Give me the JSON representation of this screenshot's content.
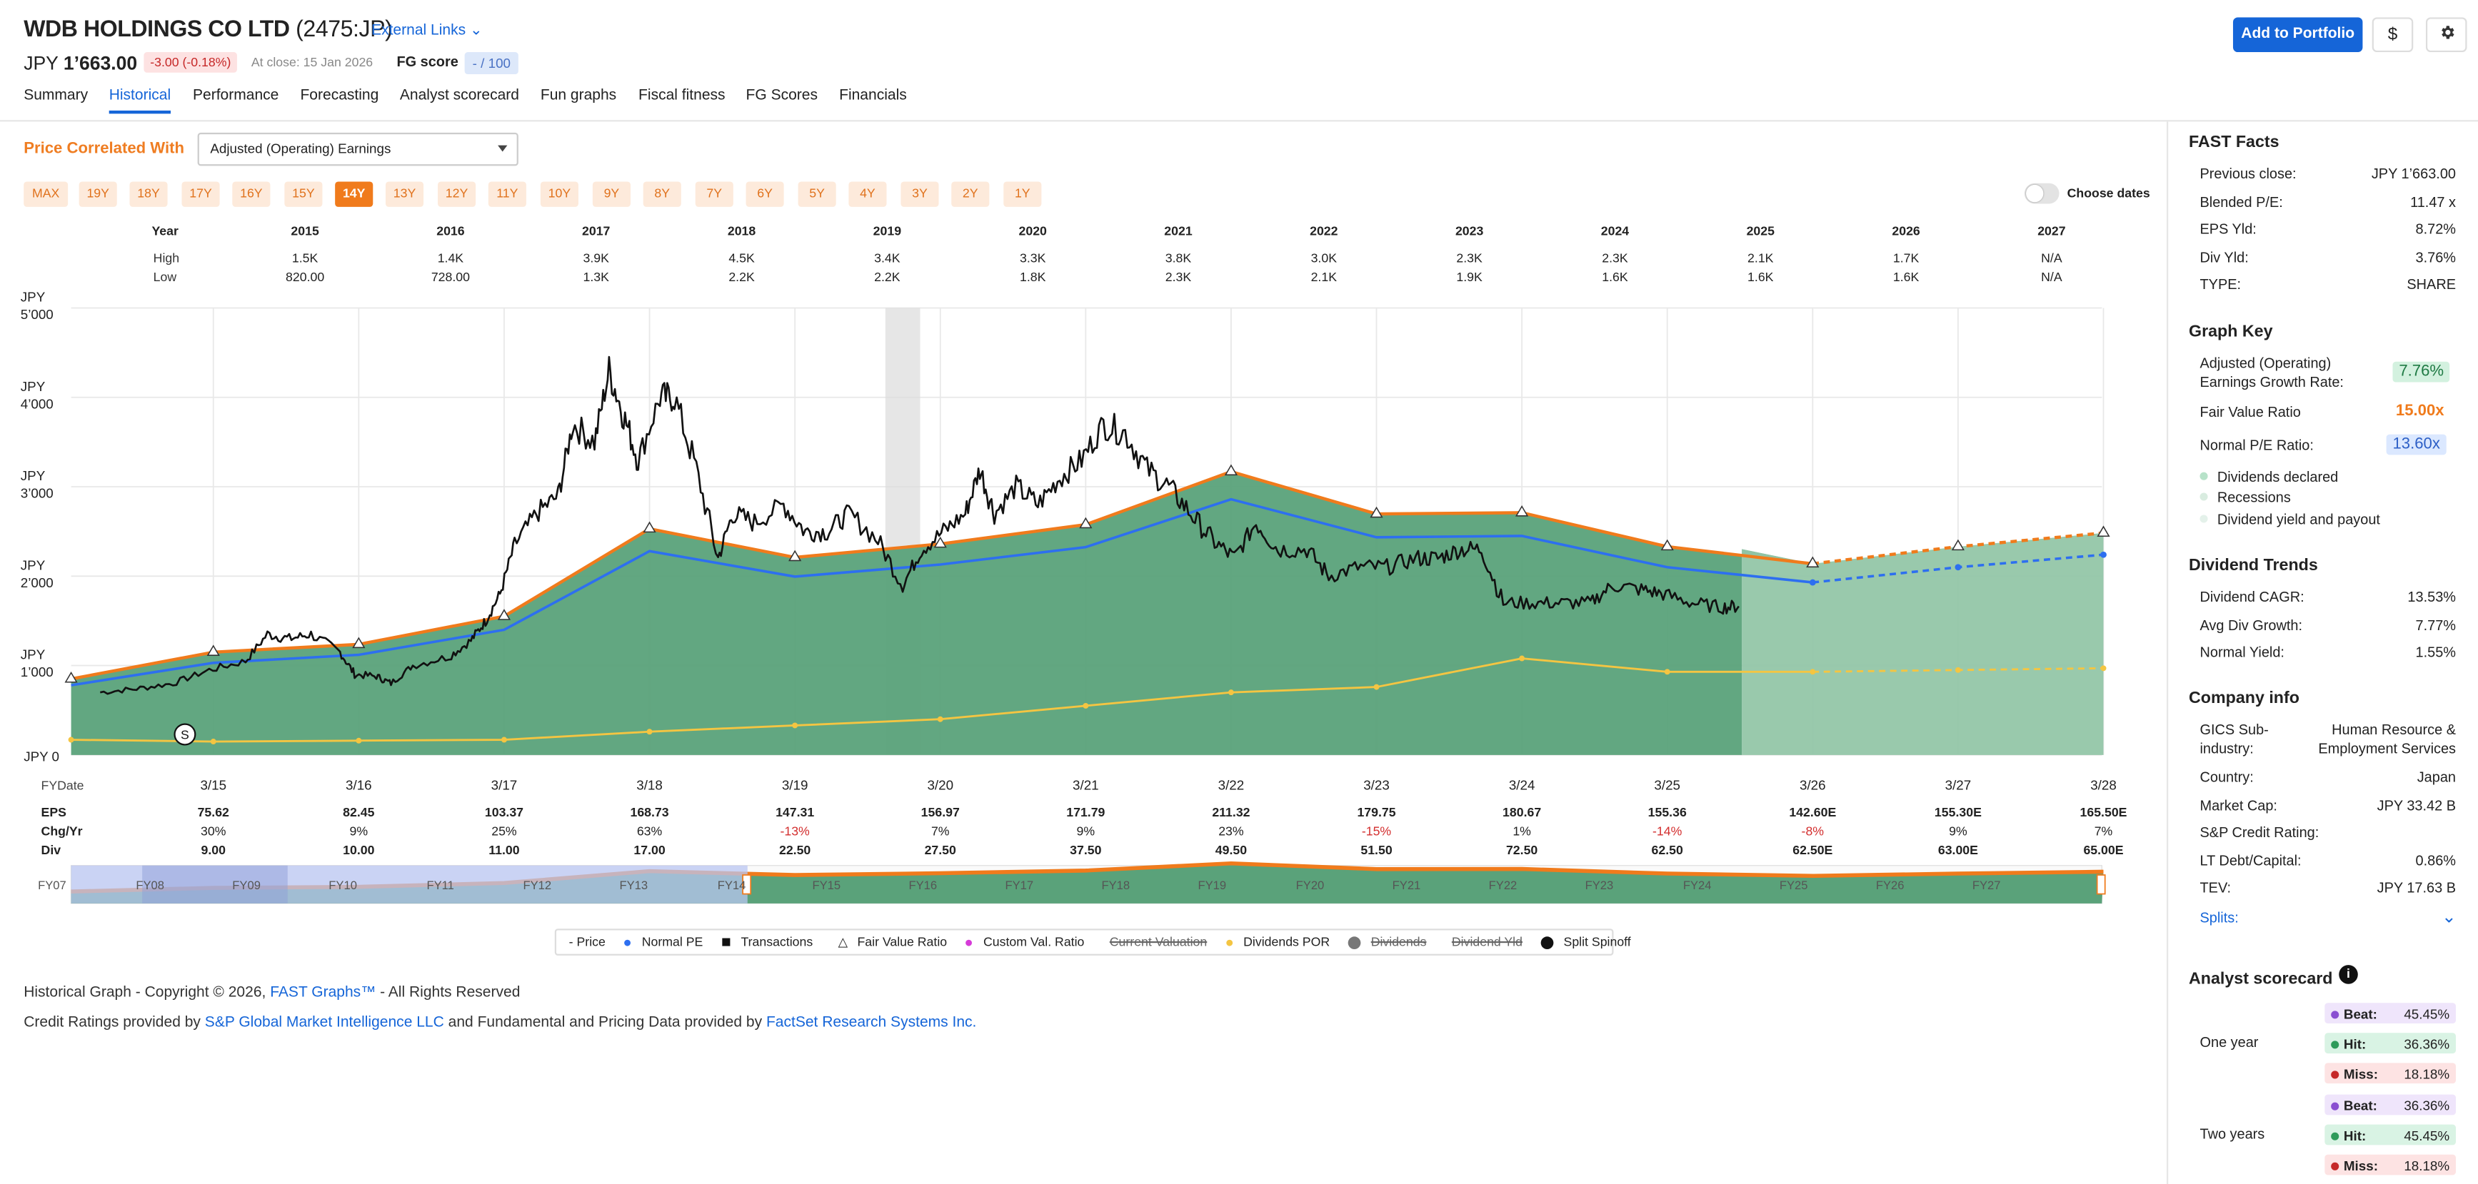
{
  "header": {
    "company": "WDB HOLDINGS CO LTD",
    "ticker": "(2475:JP)",
    "external_links": "External Links",
    "price_label": "JPY",
    "price_value": "1’663.00",
    "change": "-3.00 (-0.18%)",
    "at_close": "At close: 15 Jan 2026",
    "fg_score_label": "FG score",
    "fg_score_value": "- / 100",
    "add_portfolio": "Add to Portfolio",
    "currency_button": "$"
  },
  "tabs": [
    "Summary",
    "Historical",
    "Performance",
    "Forecasting",
    "Analyst scorecard",
    "Fun graphs",
    "Fiscal fitness",
    "FG Scores",
    "Financials"
  ],
  "controls": {
    "price_correlated_label": "Price Correlated With",
    "correlated_value": "Adjusted (Operating) Earnings",
    "year_buttons": [
      "MAX",
      "19Y",
      "18Y",
      "17Y",
      "16Y",
      "15Y",
      "14Y",
      "13Y",
      "12Y",
      "11Y",
      "10Y",
      "9Y",
      "8Y",
      "7Y",
      "6Y",
      "5Y",
      "4Y",
      "3Y",
      "2Y",
      "1Y"
    ],
    "year_selected": "14Y",
    "choose_dates": "Choose dates"
  },
  "range_table": {
    "year_label": "Year",
    "high_label": "High",
    "low_label": "Low",
    "years": [
      "2015",
      "2016",
      "2017",
      "2018",
      "2019",
      "2020",
      "2021",
      "2022",
      "2023",
      "2024",
      "2025",
      "2026",
      "2027"
    ],
    "high": [
      "1.5K",
      "1.4K",
      "3.9K",
      "4.5K",
      "3.4K",
      "3.3K",
      "3.8K",
      "3.0K",
      "2.3K",
      "2.3K",
      "2.1K",
      "1.7K",
      "N/A"
    ],
    "low": [
      "820.00",
      "728.00",
      "1.3K",
      "2.2K",
      "2.2K",
      "1.8K",
      "2.3K",
      "2.1K",
      "1.9K",
      "1.6K",
      "1.6K",
      "1.6K",
      "N/A"
    ]
  },
  "chart_data": {
    "type": "area",
    "currency": "JPY",
    "y_ticks": [
      "JPY 5’000",
      "JPY 4’000",
      "JPY 3’000",
      "JPY 2’000",
      "JPY 1’000",
      "JPY 0"
    ],
    "ylim": [
      0,
      5000
    ],
    "x_label": "FYDate",
    "x_dates": [
      "3/15",
      "3/16",
      "3/17",
      "3/18",
      "3/19",
      "3/20",
      "3/21",
      "3/22",
      "3/23",
      "3/24",
      "3/25",
      "3/26",
      "3/27",
      "3/28"
    ],
    "fair_value": [
      850,
      1150,
      1237,
      1551,
      2530,
      2210,
      2360,
      2577,
      3169,
      2696,
      2710,
      2330,
      2139,
      2330,
      2483
    ],
    "normal_pe": [
      780,
      1030,
      1120,
      1400,
      2280,
      1995,
      2130,
      2325,
      2860,
      2435,
      2450,
      2100,
      1930,
      2100,
      2240
    ],
    "dividends_por": [
      170,
      150,
      160,
      170,
      260,
      330,
      400,
      550,
      700,
      760,
      1080,
      930,
      930,
      950,
      970
    ],
    "price_points": [
      [
        2014.45,
        700
      ],
      [
        2014.7,
        740
      ],
      [
        2014.95,
        800
      ],
      [
        2015.2,
        950
      ],
      [
        2015.45,
        1050
      ],
      [
        2015.6,
        1350
      ],
      [
        2015.75,
        1300
      ],
      [
        2015.9,
        1350
      ],
      [
        2016.1,
        1150
      ],
      [
        2016.2,
        900
      ],
      [
        2016.35,
        880
      ],
      [
        2016.45,
        800
      ],
      [
        2016.6,
        1000
      ],
      [
        2016.85,
        1100
      ],
      [
        2017.0,
        1280
      ],
      [
        2017.1,
        1500
      ],
      [
        2017.2,
        1800
      ],
      [
        2017.3,
        2350
      ],
      [
        2017.45,
        2700
      ],
      [
        2017.6,
        2900
      ],
      [
        2017.7,
        3700
      ],
      [
        2017.85,
        3500
      ],
      [
        2017.95,
        4300
      ],
      [
        2018.05,
        3800
      ],
      [
        2018.15,
        3300
      ],
      [
        2018.3,
        4000
      ],
      [
        2018.4,
        4000
      ],
      [
        2018.55,
        3200
      ],
      [
        2018.7,
        2200
      ],
      [
        2018.8,
        2700
      ],
      [
        2018.95,
        2600
      ],
      [
        2019.15,
        2800
      ],
      [
        2019.3,
        2500
      ],
      [
        2019.45,
        2500
      ],
      [
        2019.6,
        2700
      ],
      [
        2019.8,
        2400
      ],
      [
        2019.97,
        1900
      ],
      [
        2020.1,
        2300
      ],
      [
        2020.25,
        2500
      ],
      [
        2020.4,
        2700
      ],
      [
        2020.5,
        3200
      ],
      [
        2020.6,
        2700
      ],
      [
        2020.75,
        3000
      ],
      [
        2020.9,
        2800
      ],
      [
        2021.05,
        3100
      ],
      [
        2021.2,
        3300
      ],
      [
        2021.35,
        3700
      ],
      [
        2021.5,
        3600
      ],
      [
        2021.65,
        3200
      ],
      [
        2021.8,
        3000
      ],
      [
        2021.95,
        2700
      ],
      [
        2022.1,
        2400
      ],
      [
        2022.25,
        2200
      ],
      [
        2022.4,
        2600
      ],
      [
        2022.55,
        2300
      ],
      [
        2022.75,
        2300
      ],
      [
        2022.9,
        2000
      ],
      [
        2023.1,
        2100
      ],
      [
        2023.3,
        2100
      ],
      [
        2023.5,
        2200
      ],
      [
        2023.65,
        2200
      ],
      [
        2023.8,
        2300
      ],
      [
        2023.95,
        2300
      ],
      [
        2024.1,
        1700
      ],
      [
        2024.3,
        1700
      ],
      [
        2024.5,
        1700
      ],
      [
        2024.7,
        1700
      ],
      [
        2024.85,
        1900
      ],
      [
        2025.05,
        1850
      ],
      [
        2025.2,
        1800
      ],
      [
        2025.4,
        1700
      ],
      [
        2025.6,
        1650
      ],
      [
        2025.72,
        1663
      ]
    ],
    "eps": [
      "75.62",
      "82.45",
      "103.37",
      "168.73",
      "147.31",
      "156.97",
      "171.79",
      "211.32",
      "179.75",
      "180.67",
      "155.36",
      "142.60E",
      "155.30E",
      "165.50E"
    ],
    "chg_yr": [
      "30%",
      "9%",
      "25%",
      "63%",
      "-13%",
      "7%",
      "9%",
      "23%",
      "-15%",
      "1%",
      "-14%",
      "-8%",
      "9%",
      "7%"
    ],
    "div": [
      "9.00",
      "10.00",
      "11.00",
      "17.00",
      "22.50",
      "27.50",
      "37.50",
      "49.50",
      "51.50",
      "72.50",
      "62.50",
      "62.50E",
      "63.00E",
      "65.00E"
    ],
    "row_labels": [
      "EPS",
      "Chg/Yr",
      "Div"
    ],
    "navigator_labels": [
      "FY07",
      "FY08",
      "FY09",
      "FY10",
      "FY11",
      "FY12",
      "FY13",
      "FY14",
      "FY15",
      "FY16",
      "FY17",
      "FY18",
      "FY19",
      "FY20",
      "FY21",
      "FY22",
      "FY23",
      "FY24",
      "FY25",
      "FY26",
      "FY27"
    ],
    "split_marker": "S",
    "colors": {
      "fair_value": "#f07b1c",
      "normal_pe": "#2d6ff0",
      "area": "#5aa27a",
      "dividends": "#f4c542",
      "price": "#111111"
    }
  },
  "legend": [
    "- Price",
    "Normal PE",
    "Transactions",
    "Fair Value Ratio",
    "Custom Val. Ratio",
    "Current Valuation",
    "Dividends POR",
    "Dividends",
    "Dividend Yld",
    "Split Spinoff"
  ],
  "footer": {
    "copyright_pre": "Historical Graph - Copyright © 2026,",
    "copyright_link": "FAST Graphs™",
    "copyright_post": "- All Rights Reserved",
    "credit_pre": "Credit Ratings provided by",
    "credit_link1": "S&P Global Market Intelligence LLC",
    "credit_mid": "and Fundamental and Pricing Data provided by",
    "credit_link2": "FactSet Research Systems Inc."
  },
  "fast_facts": {
    "title": "FAST Facts",
    "rows": [
      {
        "label": "Previous close:",
        "value": "JPY 1’663.00"
      },
      {
        "label": "Blended P/E:",
        "value": "11.47 x"
      },
      {
        "label": "EPS Yld:",
        "value": "8.72%"
      },
      {
        "label": "Div Yld:",
        "value": "3.76%"
      },
      {
        "label": "TYPE:",
        "value": "SHARE"
      }
    ]
  },
  "graph_key": {
    "title": "Graph Key",
    "growth_label1": "Adjusted (Operating)",
    "growth_label2": "Earnings Growth Rate:",
    "growth_value": "7.76%",
    "fair_label": "Fair Value Ratio",
    "fair_value": "15.00x",
    "normal_label": "Normal P/E Ratio:",
    "normal_value": "13.60x",
    "items": [
      "Dividends declared",
      "Recessions",
      "Dividend yield and payout"
    ]
  },
  "dividend_trends": {
    "title": "Dividend Trends",
    "rows": [
      {
        "label": "Dividend CAGR:",
        "value": "13.53%"
      },
      {
        "label": "Avg Div Growth:",
        "value": "7.77%"
      },
      {
        "label": "Normal Yield:",
        "value": "1.55%"
      }
    ]
  },
  "company_info": {
    "title": "Company info",
    "gics_label1": "GICS Sub-",
    "gics_label2": "industry:",
    "gics_value1": "Human Resource &",
    "gics_value2": "Employment Services",
    "rows": [
      {
        "label": "Country:",
        "value": "Japan"
      },
      {
        "label": "Market Cap:",
        "value": "JPY 33.42 B"
      },
      {
        "label": "S&P Credit Rating:",
        "value": ""
      },
      {
        "label": "LT Debt/Capital:",
        "value": "0.86%"
      },
      {
        "label": "TEV:",
        "value": "JPY 17.63 B"
      }
    ],
    "splits": "Splits:"
  },
  "analyst_scorecard": {
    "title": "Analyst scorecard",
    "one_year": "One year",
    "two_years": "Two years",
    "one": [
      {
        "k": "Beat:",
        "v": "45.45%"
      },
      {
        "k": "Hit:",
        "v": "36.36%"
      },
      {
        "k": "Miss:",
        "v": "18.18%"
      }
    ],
    "two": [
      {
        "k": "Beat:",
        "v": "36.36%"
      },
      {
        "k": "Hit:",
        "v": "45.45%"
      },
      {
        "k": "Miss:",
        "v": "18.18%"
      }
    ]
  }
}
